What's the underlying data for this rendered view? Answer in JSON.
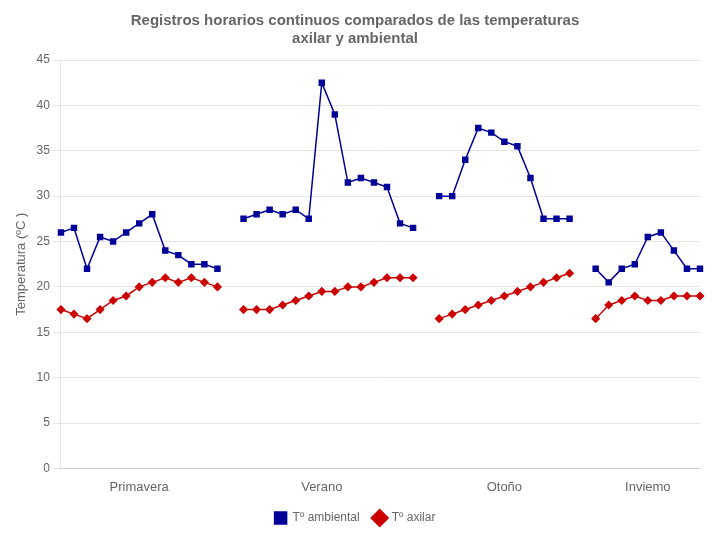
{
  "chart_data": {
    "type": "line",
    "title": "Registros horarios continuos comparados de las temperaturas\naxilar y ambiental",
    "ylabel": "Temperatura (ºC )",
    "categories": [
      null,
      null,
      null,
      null,
      null,
      null,
      "Primavera",
      null,
      null,
      null,
      null,
      null,
      null,
      null,
      null,
      null,
      null,
      null,
      null,
      null,
      "Verano",
      null,
      null,
      null,
      null,
      null,
      null,
      null,
      null,
      null,
      null,
      null,
      null,
      null,
      "Otoño",
      null,
      null,
      null,
      null,
      null,
      null,
      null,
      null,
      null,
      null,
      "Inviemo",
      null,
      null,
      null,
      null
    ],
    "series": [
      {
        "name": "Tº ambiental",
        "color": "#000099",
        "marker": "square",
        "values": [
          26,
          26.5,
          22,
          25.5,
          25,
          26,
          27,
          28,
          24,
          23.5,
          22.5,
          22.5,
          22,
          null,
          27.5,
          28,
          28.5,
          28,
          28.5,
          27.5,
          42.5,
          39,
          31.5,
          32,
          31.5,
          31,
          27,
          26.5,
          null,
          30,
          30,
          34,
          37.5,
          37,
          36,
          35.5,
          32,
          27.5,
          27.5,
          27.5,
          null,
          22,
          20.5,
          22,
          22.5,
          25.5,
          26,
          24,
          22,
          22
        ]
      },
      {
        "name": "Tº axilar",
        "color": "#CC0000",
        "marker": "diamond",
        "values": [
          17.5,
          17,
          16.5,
          17.5,
          18.5,
          19,
          20,
          20.5,
          21,
          20.5,
          21,
          20.5,
          20,
          null,
          17.5,
          17.5,
          17.5,
          18,
          18.5,
          19,
          19.5,
          19.5,
          20,
          20,
          20.5,
          21,
          21,
          21,
          null,
          16.5,
          17,
          17.5,
          18,
          18.5,
          19,
          19.5,
          20,
          20.5,
          21,
          21.5,
          null,
          16.5,
          18,
          18.5,
          19,
          18.5,
          18.5,
          19,
          19,
          19
        ]
      }
    ],
    "ylim": [
      0,
      45
    ],
    "yticks": [
      0,
      5,
      10,
      15,
      20,
      25,
      30,
      35,
      40,
      45
    ],
    "grid": true,
    "legend": "bottom"
  }
}
